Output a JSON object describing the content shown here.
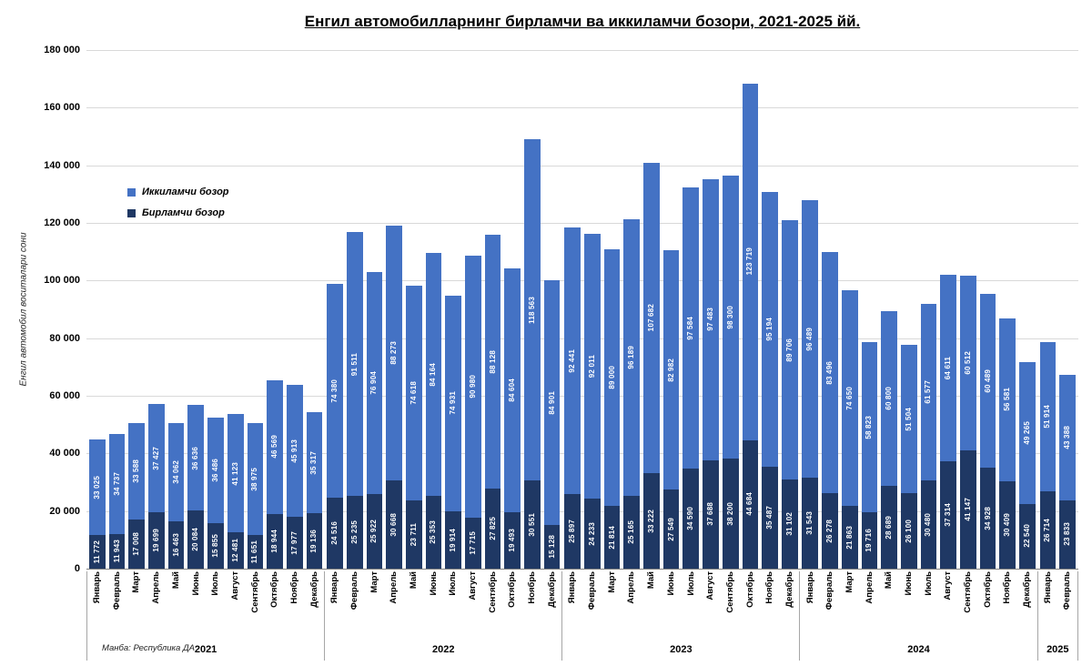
{
  "chart_data": {
    "type": "bar",
    "stacked": true,
    "title": "Енгил автомобилларнинг бирламчи ва иккиламчи бозори, 2021-2025 йй.",
    "ylabel": "Енгил автомобил воситалари сони",
    "source": "Манба: Республика ДА",
    "ylim": [
      0,
      180000
    ],
    "ytick_step": 20000,
    "grid": true,
    "legend_position": "inside-left",
    "legend": [
      {
        "label": "Иккиламчи бозор",
        "color": "#4472C4"
      },
      {
        "label": "Бирламчи бозор",
        "color": "#1F3864"
      }
    ],
    "series_names": {
      "primary": "Бирламчи бозор",
      "secondary": "Иккиламчи бозор"
    },
    "groups": [
      {
        "year": "2021",
        "months": [
          "Январь",
          "Февраль",
          "Март",
          "Апрель",
          "Май",
          "Июнь",
          "Июль",
          "Август",
          "Сентябрь",
          "Октябрь",
          "Ноябрь",
          "Декабрь"
        ],
        "primary": [
          11772,
          11943,
          17008,
          19699,
          16463,
          20084,
          15855,
          12481,
          11651,
          18944,
          17977,
          19136
        ],
        "secondary": [
          33025,
          34737,
          33588,
          37427,
          34062,
          36636,
          36486,
          41123,
          38975,
          46569,
          45913,
          35317
        ]
      },
      {
        "year": "2022",
        "months": [
          "Январь",
          "Февраль",
          "Март",
          "Апрель",
          "Май",
          "Июнь",
          "Июль",
          "Август",
          "Сентябрь",
          "Октябрь",
          "Ноябрь",
          "Декабрь"
        ],
        "primary": [
          24516,
          25235,
          25922,
          30668,
          23711,
          25353,
          19914,
          17715,
          27825,
          19493,
          30551,
          15128
        ],
        "secondary": [
          74380,
          91511,
          76904,
          88273,
          74618,
          84164,
          74931,
          90980,
          88128,
          84604,
          118563,
          84901
        ]
      },
      {
        "year": "2023",
        "months": [
          "Январь",
          "Февраль",
          "Март",
          "Апрель",
          "Май",
          "Июнь",
          "Июль",
          "Август",
          "Сентябрь",
          "Октябрь",
          "Ноябрь",
          "Декабрь"
        ],
        "primary": [
          25897,
          24233,
          21814,
          25165,
          33222,
          27549,
          34590,
          37688,
          38200,
          44684,
          35487,
          31102
        ],
        "secondary": [
          92441,
          92011,
          89000,
          96189,
          107682,
          82982,
          97584,
          97483,
          98300,
          123719,
          95194,
          89706
        ]
      },
      {
        "year": "2024",
        "months": [
          "Январь",
          "Февраль",
          "Март",
          "Апрель",
          "Май",
          "Июнь",
          "Июль",
          "Август",
          "Сентябрь",
          "Октябрь",
          "Ноябрь",
          "Декабрь"
        ],
        "primary": [
          31543,
          26278,
          21863,
          19716,
          28689,
          26100,
          30480,
          37314,
          41147,
          34928,
          30409,
          22540
        ],
        "secondary": [
          96489,
          83496,
          74650,
          58823,
          60800,
          51504,
          61577,
          64611,
          60512,
          60489,
          56581,
          49265
        ]
      },
      {
        "year": "2025",
        "months": [
          "Январь",
          "Февраль"
        ],
        "primary": [
          26714,
          23833
        ],
        "secondary": [
          51914,
          43388
        ]
      }
    ]
  }
}
